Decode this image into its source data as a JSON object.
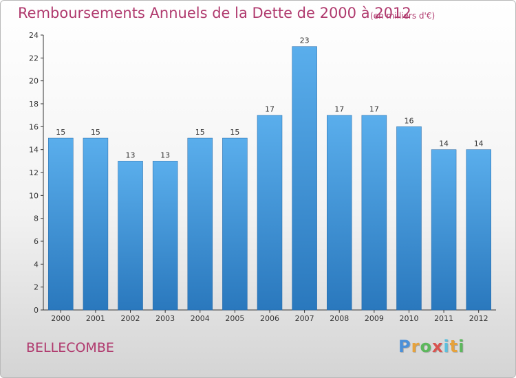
{
  "chart_data": {
    "type": "bar",
    "title": "Remboursements Annuels de la Dette de 2000 à 2012",
    "subtitle": "(en milliers d'€)",
    "categories": [
      "2000",
      "2001",
      "2002",
      "2003",
      "2004",
      "2005",
      "2006",
      "2007",
      "2008",
      "2009",
      "2010",
      "2011",
      "2012"
    ],
    "values": [
      15,
      15,
      13,
      13,
      15,
      15,
      17,
      23,
      17,
      17,
      16,
      14,
      14
    ],
    "ylim": [
      0,
      24
    ],
    "yticks": [
      0,
      2,
      4,
      6,
      8,
      10,
      12,
      14,
      16,
      18,
      20,
      22,
      24
    ],
    "grid": false,
    "bar_color": "#4a9be0"
  },
  "commune": "BELLECOMBE",
  "logo": {
    "letters": [
      "P",
      "r",
      "o",
      "x",
      "i",
      "t",
      "i"
    ],
    "colors": [
      "#4a90d9",
      "#e6a23c",
      "#5cb85c",
      "#d9534f",
      "#5bc0de",
      "#e6a23c",
      "#5cb85c"
    ]
  }
}
